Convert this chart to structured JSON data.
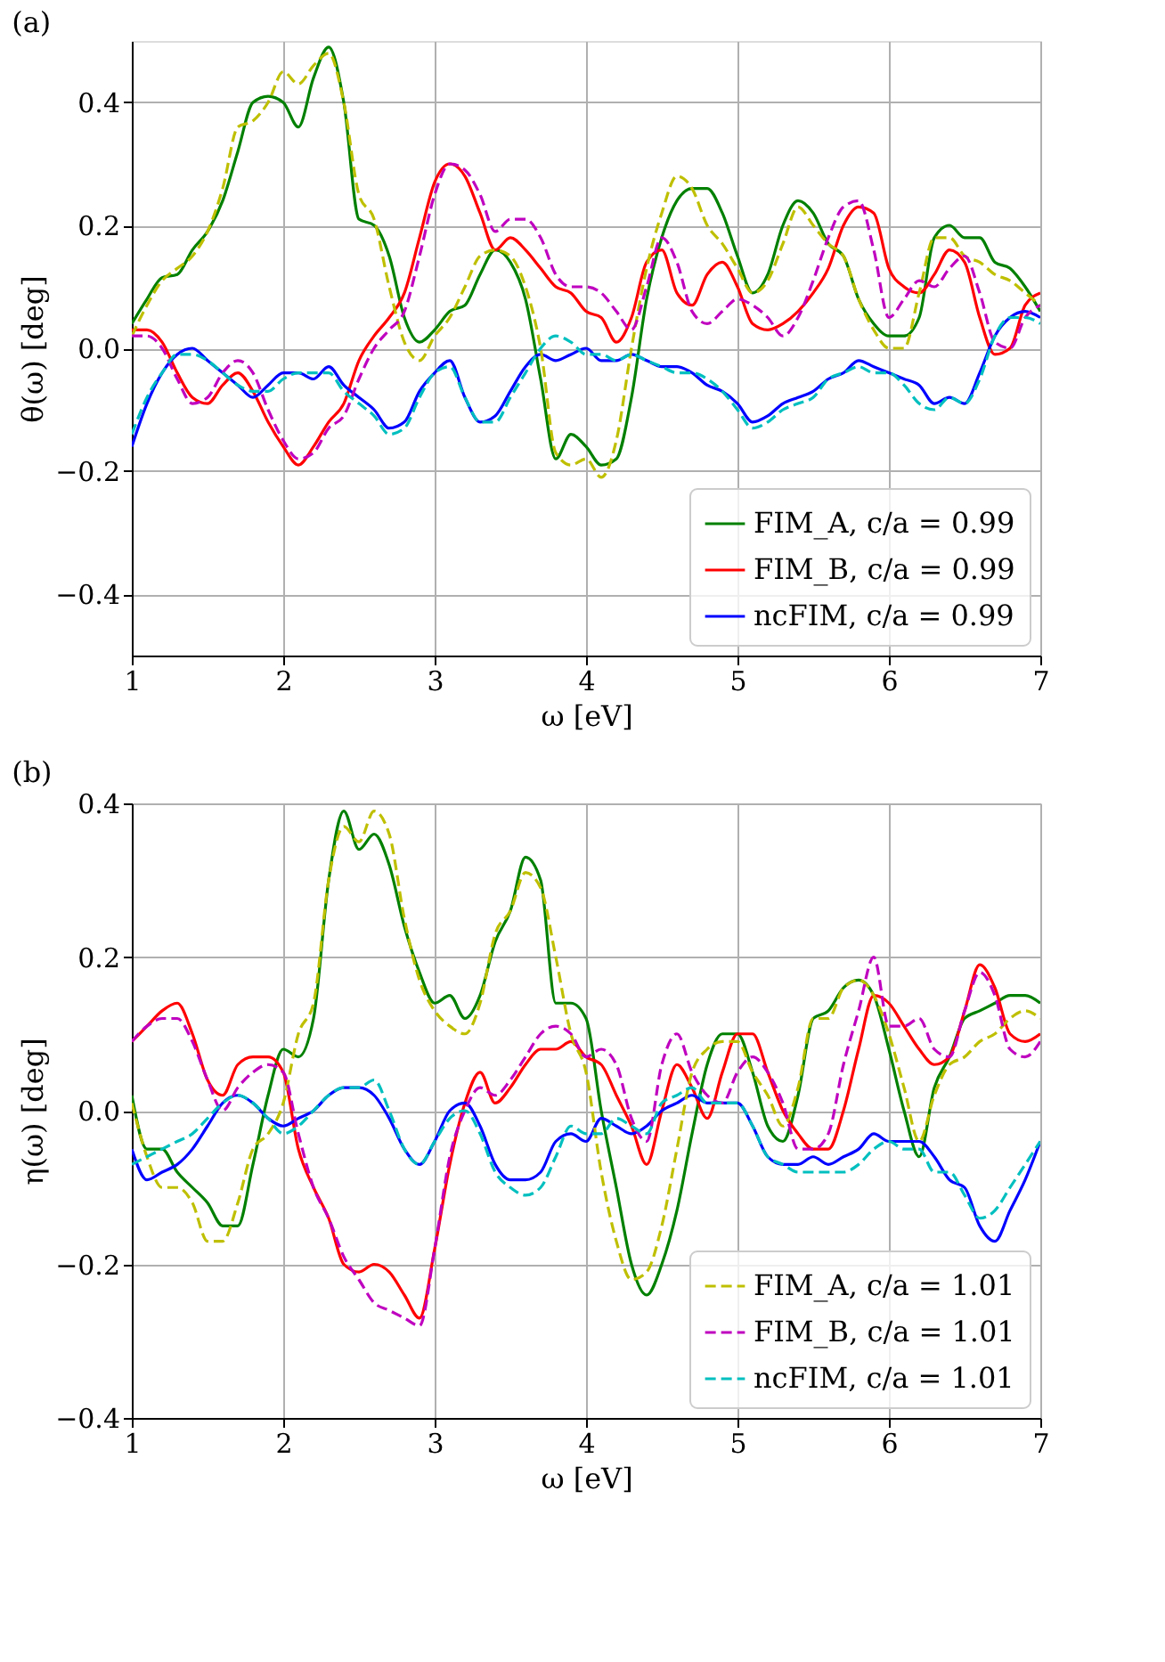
{
  "chart_data": [
    {
      "type": "line",
      "title": "(a)",
      "xlabel": "ω [eV]",
      "ylabel": "θ(ω) [deg]",
      "x": [
        1.0,
        1.1,
        1.2,
        1.3,
        1.4,
        1.5,
        1.6,
        1.7,
        1.8,
        1.9,
        2.0,
        2.1,
        2.2,
        2.3,
        2.4,
        2.5,
        2.6,
        2.7,
        2.8,
        2.9,
        3.0,
        3.1,
        3.2,
        3.3,
        3.4,
        3.5,
        3.6,
        3.7,
        3.8,
        3.9,
        4.0,
        4.1,
        4.2,
        4.3,
        4.4,
        4.5,
        4.6,
        4.7,
        4.8,
        4.9,
        5.0,
        5.1,
        5.2,
        5.3,
        5.4,
        5.5,
        5.6,
        5.7,
        5.8,
        5.9,
        6.0,
        6.1,
        6.2,
        6.3,
        6.4,
        6.5,
        6.6,
        6.7,
        6.8,
        6.9,
        7.0
      ],
      "xlim": [
        1,
        7
      ],
      "xticks": [
        1,
        2,
        3,
        4,
        5,
        6,
        7
      ],
      "ylim": [
        -0.5,
        0.5
      ],
      "yticks": [
        {
          "value": -0.4,
          "label": "−0.4"
        },
        {
          "value": -0.2,
          "label": "−0.2"
        },
        {
          "value": 0,
          "label": "0.0"
        },
        {
          "value": 0.2,
          "label": "0.2"
        },
        {
          "value": 0.4,
          "label": "0.4"
        }
      ],
      "grid": true,
      "legend": "bottom right",
      "marker": "none",
      "series": [
        {
          "name": "FIM_A, c/a = 0.99",
          "color": "#008000",
          "line_style": "solid",
          "values": [
            0.04,
            0.08,
            0.115,
            0.12,
            0.16,
            0.19,
            0.24,
            0.32,
            0.4,
            0.41,
            0.4,
            0.36,
            0.44,
            0.49,
            0.4,
            0.21,
            0.2,
            0.15,
            0.05,
            0.01,
            0.03,
            0.06,
            0.07,
            0.12,
            0.16,
            0.14,
            0.08,
            -0.05,
            -0.18,
            -0.14,
            -0.16,
            -0.19,
            -0.18,
            -0.08,
            0.08,
            0.18,
            0.24,
            0.26,
            0.26,
            0.22,
            0.15,
            0.09,
            0.12,
            0.2,
            0.24,
            0.22,
            0.17,
            0.15,
            0.08,
            0.04,
            0.02,
            0.02,
            0.05,
            0.18,
            0.2,
            0.18,
            0.18,
            0.14,
            0.13,
            0.1,
            0.06
          ]
        },
        {
          "name": "FIM_B, c/a = 0.99",
          "color": "#ff0000",
          "line_style": "solid",
          "values": [
            0.03,
            0.03,
            0.01,
            -0.04,
            -0.08,
            -0.09,
            -0.06,
            -0.04,
            -0.07,
            -0.12,
            -0.16,
            -0.19,
            -0.16,
            -0.12,
            -0.09,
            -0.02,
            0.02,
            0.05,
            0.09,
            0.18,
            0.27,
            0.3,
            0.28,
            0.22,
            0.16,
            0.18,
            0.16,
            0.13,
            0.1,
            0.09,
            0.06,
            0.05,
            0.01,
            0.05,
            0.14,
            0.16,
            0.09,
            0.07,
            0.12,
            0.14,
            0.1,
            0.04,
            0.03,
            0.04,
            0.06,
            0.09,
            0.13,
            0.2,
            0.23,
            0.22,
            0.13,
            0.1,
            0.09,
            0.12,
            0.16,
            0.14,
            0.05,
            -0.01,
            0.0,
            0.07,
            0.09
          ]
        },
        {
          "name": "ncFIM, c/a = 0.99",
          "color": "#0000ff",
          "line_style": "solid",
          "values": [
            -0.16,
            -0.09,
            -0.04,
            -0.01,
            0.0,
            -0.02,
            -0.04,
            -0.06,
            -0.08,
            -0.06,
            -0.04,
            -0.04,
            -0.05,
            -0.03,
            -0.06,
            -0.08,
            -0.1,
            -0.13,
            -0.12,
            -0.07,
            -0.04,
            -0.02,
            -0.08,
            -0.12,
            -0.11,
            -0.07,
            -0.03,
            -0.01,
            -0.02,
            -0.01,
            0.0,
            -0.02,
            -0.02,
            -0.01,
            -0.02,
            -0.03,
            -0.03,
            -0.04,
            -0.06,
            -0.07,
            -0.09,
            -0.12,
            -0.11,
            -0.09,
            -0.08,
            -0.07,
            -0.05,
            -0.04,
            -0.02,
            -0.03,
            -0.04,
            -0.05,
            -0.06,
            -0.09,
            -0.08,
            -0.09,
            -0.04,
            0.02,
            0.05,
            0.06,
            0.05
          ]
        },
        {
          "color": "#bfbf00",
          "line_style": "dashed",
          "values": [
            0.02,
            0.07,
            0.11,
            0.13,
            0.15,
            0.19,
            0.26,
            0.36,
            0.37,
            0.4,
            0.45,
            0.43,
            0.46,
            0.48,
            0.4,
            0.25,
            0.21,
            0.1,
            0.01,
            -0.02,
            0.02,
            0.05,
            0.1,
            0.15,
            0.16,
            0.15,
            0.1,
            0.0,
            -0.17,
            -0.19,
            -0.18,
            -0.21,
            -0.15,
            0.0,
            0.13,
            0.22,
            0.28,
            0.26,
            0.2,
            0.17,
            0.13,
            0.09,
            0.11,
            0.17,
            0.23,
            0.2,
            0.17,
            0.15,
            0.08,
            0.03,
            0.0,
            0.0,
            0.09,
            0.18,
            0.18,
            0.15,
            0.14,
            0.12,
            0.11,
            0.09,
            0.07
          ]
        },
        {
          "color": "#bf00bf",
          "line_style": "dashed",
          "values": [
            0.02,
            0.02,
            0.0,
            -0.05,
            -0.09,
            -0.08,
            -0.04,
            -0.02,
            -0.04,
            -0.1,
            -0.15,
            -0.18,
            -0.17,
            -0.13,
            -0.11,
            -0.05,
            0.0,
            0.03,
            0.06,
            0.15,
            0.25,
            0.3,
            0.29,
            0.25,
            0.19,
            0.21,
            0.21,
            0.18,
            0.12,
            0.1,
            0.1,
            0.09,
            0.06,
            0.03,
            0.1,
            0.18,
            0.14,
            0.06,
            0.04,
            0.06,
            0.08,
            0.07,
            0.05,
            0.02,
            0.05,
            0.11,
            0.18,
            0.23,
            0.24,
            0.16,
            0.05,
            0.08,
            0.11,
            0.1,
            0.13,
            0.15,
            0.09,
            0.01,
            0.0,
            0.05,
            0.07
          ]
        },
        {
          "color": "#00bfbf",
          "line_style": "dashed",
          "values": [
            -0.14,
            -0.08,
            -0.04,
            -0.01,
            -0.01,
            -0.02,
            -0.04,
            -0.06,
            -0.07,
            -0.07,
            -0.05,
            -0.04,
            -0.04,
            -0.04,
            -0.07,
            -0.09,
            -0.11,
            -0.14,
            -0.13,
            -0.08,
            -0.04,
            -0.03,
            -0.08,
            -0.12,
            -0.12,
            -0.08,
            -0.04,
            0.0,
            0.02,
            0.01,
            -0.01,
            -0.01,
            -0.02,
            -0.01,
            -0.02,
            -0.03,
            -0.04,
            -0.04,
            -0.05,
            -0.07,
            -0.1,
            -0.13,
            -0.12,
            -0.1,
            -0.09,
            -0.08,
            -0.05,
            -0.04,
            -0.03,
            -0.04,
            -0.04,
            -0.06,
            -0.09,
            -0.1,
            -0.08,
            -0.09,
            -0.05,
            0.02,
            0.05,
            0.05,
            0.04
          ]
        }
      ]
    },
    {
      "type": "line",
      "title": "(b)",
      "xlabel": "ω [eV]",
      "ylabel": "η(ω) [deg]",
      "x": [
        1.0,
        1.1,
        1.2,
        1.3,
        1.4,
        1.5,
        1.6,
        1.7,
        1.8,
        1.9,
        2.0,
        2.1,
        2.2,
        2.3,
        2.4,
        2.5,
        2.6,
        2.7,
        2.8,
        2.9,
        3.0,
        3.1,
        3.2,
        3.3,
        3.4,
        3.5,
        3.6,
        3.7,
        3.8,
        3.9,
        4.0,
        4.1,
        4.2,
        4.3,
        4.4,
        4.5,
        4.6,
        4.7,
        4.8,
        4.9,
        5.0,
        5.1,
        5.2,
        5.3,
        5.4,
        5.5,
        5.6,
        5.7,
        5.8,
        5.9,
        6.0,
        6.1,
        6.2,
        6.3,
        6.4,
        6.5,
        6.6,
        6.7,
        6.8,
        6.9,
        7.0
      ],
      "xlim": [
        1,
        7
      ],
      "xticks": [
        1,
        2,
        3,
        4,
        5,
        6,
        7
      ],
      "ylim": [
        -0.4,
        0.4
      ],
      "yticks": [
        {
          "value": -0.4,
          "label": "−0.4"
        },
        {
          "value": -0.2,
          "label": "−0.2"
        },
        {
          "value": 0,
          "label": "0.0"
        },
        {
          "value": 0.2,
          "label": "0.2"
        },
        {
          "value": 0.4,
          "label": "0.4"
        }
      ],
      "grid": true,
      "legend": "bottom right",
      "marker": "none",
      "series": [
        {
          "color": "#008000",
          "line_style": "solid",
          "values": [
            0.02,
            -0.05,
            -0.05,
            -0.08,
            -0.1,
            -0.12,
            -0.15,
            -0.15,
            -0.07,
            0.02,
            0.08,
            0.07,
            0.12,
            0.3,
            0.39,
            0.34,
            0.36,
            0.32,
            0.24,
            0.18,
            0.14,
            0.15,
            0.12,
            0.15,
            0.22,
            0.26,
            0.33,
            0.3,
            0.14,
            0.14,
            0.12,
            0.0,
            -0.1,
            -0.2,
            -0.24,
            -0.2,
            -0.13,
            -0.03,
            0.06,
            0.1,
            0.1,
            0.05,
            -0.02,
            -0.04,
            0.02,
            0.12,
            0.13,
            0.16,
            0.17,
            0.15,
            0.08,
            0.0,
            -0.06,
            0.03,
            0.07,
            0.12,
            0.13,
            0.14,
            0.15,
            0.15,
            0.14
          ]
        },
        {
          "color": "#ff0000",
          "line_style": "solid",
          "values": [
            0.09,
            0.11,
            0.13,
            0.14,
            0.1,
            0.04,
            0.02,
            0.06,
            0.07,
            0.07,
            0.05,
            -0.05,
            -0.1,
            -0.14,
            -0.2,
            -0.21,
            -0.2,
            -0.21,
            -0.24,
            -0.27,
            -0.18,
            -0.07,
            0.01,
            0.05,
            0.01,
            0.03,
            0.06,
            0.08,
            0.08,
            0.09,
            0.07,
            0.06,
            0.02,
            -0.02,
            -0.07,
            0.0,
            0.06,
            0.03,
            -0.01,
            0.05,
            0.1,
            0.1,
            0.05,
            0.0,
            -0.03,
            -0.05,
            -0.05,
            0.0,
            0.08,
            0.15,
            0.14,
            0.11,
            0.08,
            0.06,
            0.07,
            0.13,
            0.19,
            0.16,
            0.1,
            0.09,
            0.1
          ]
        },
        {
          "color": "#0000ff",
          "line_style": "solid",
          "values": [
            -0.05,
            -0.09,
            -0.08,
            -0.07,
            -0.05,
            -0.02,
            0.01,
            0.02,
            0.01,
            -0.01,
            -0.02,
            -0.01,
            0.0,
            0.02,
            0.03,
            0.03,
            0.02,
            -0.01,
            -0.05,
            -0.07,
            -0.04,
            0.0,
            0.01,
            -0.02,
            -0.07,
            -0.09,
            -0.09,
            -0.08,
            -0.04,
            -0.03,
            -0.04,
            -0.01,
            -0.02,
            -0.03,
            -0.02,
            0.0,
            0.01,
            0.02,
            0.01,
            0.01,
            0.01,
            -0.02,
            -0.06,
            -0.07,
            -0.07,
            -0.06,
            -0.07,
            -0.06,
            -0.05,
            -0.03,
            -0.04,
            -0.04,
            -0.04,
            -0.06,
            -0.09,
            -0.1,
            -0.15,
            -0.17,
            -0.13,
            -0.09,
            -0.04
          ]
        },
        {
          "name": "FIM_A, c/a = 1.01",
          "color": "#bfbf00",
          "line_style": "dashed",
          "values": [
            0.01,
            -0.06,
            -0.1,
            -0.1,
            -0.12,
            -0.17,
            -0.17,
            -0.12,
            -0.05,
            -0.03,
            0.01,
            0.1,
            0.14,
            0.3,
            0.37,
            0.35,
            0.39,
            0.36,
            0.25,
            0.17,
            0.13,
            0.11,
            0.1,
            0.14,
            0.23,
            0.26,
            0.31,
            0.29,
            0.2,
            0.1,
            0.05,
            -0.08,
            -0.17,
            -0.22,
            -0.21,
            -0.15,
            -0.05,
            0.05,
            0.08,
            0.09,
            0.09,
            0.05,
            0.02,
            -0.02,
            0.03,
            0.12,
            0.12,
            0.16,
            0.17,
            0.15,
            0.1,
            0.03,
            -0.04,
            0.02,
            0.06,
            0.07,
            0.09,
            0.1,
            0.12,
            0.13,
            0.12
          ]
        },
        {
          "name": "FIM_B, c/a = 1.01",
          "color": "#bf00bf",
          "line_style": "dashed",
          "values": [
            0.09,
            0.11,
            0.12,
            0.12,
            0.09,
            0.04,
            0.0,
            0.03,
            0.05,
            0.06,
            0.05,
            -0.03,
            -0.1,
            -0.14,
            -0.19,
            -0.22,
            -0.25,
            -0.26,
            -0.27,
            -0.28,
            -0.18,
            -0.06,
            0.0,
            0.03,
            0.02,
            0.04,
            0.07,
            0.1,
            0.11,
            0.1,
            0.07,
            0.08,
            0.06,
            -0.01,
            -0.04,
            0.06,
            0.1,
            0.05,
            0.02,
            0.01,
            0.05,
            0.07,
            0.05,
            0.01,
            -0.05,
            -0.05,
            -0.03,
            0.06,
            0.13,
            0.2,
            0.11,
            0.11,
            0.12,
            0.08,
            0.07,
            0.13,
            0.18,
            0.15,
            0.08,
            0.07,
            0.09
          ]
        },
        {
          "name": "ncFIM, c/a = 1.01",
          "color": "#00bfbf",
          "line_style": "dashed",
          "values": [
            -0.07,
            -0.06,
            -0.05,
            -0.04,
            -0.03,
            -0.01,
            0.01,
            0.02,
            0.01,
            -0.01,
            -0.03,
            -0.02,
            0.0,
            0.02,
            0.03,
            0.03,
            0.04,
            0.0,
            -0.05,
            -0.07,
            -0.04,
            -0.01,
            0.0,
            -0.03,
            -0.08,
            -0.1,
            -0.11,
            -0.1,
            -0.06,
            -0.02,
            -0.03,
            -0.03,
            -0.01,
            -0.02,
            -0.03,
            0.01,
            0.02,
            0.03,
            0.01,
            0.01,
            0.01,
            -0.02,
            -0.06,
            -0.07,
            -0.08,
            -0.08,
            -0.08,
            -0.08,
            -0.07,
            -0.05,
            -0.04,
            -0.05,
            -0.05,
            -0.08,
            -0.08,
            -0.11,
            -0.14,
            -0.13,
            -0.1,
            -0.07,
            -0.04
          ]
        }
      ]
    }
  ]
}
